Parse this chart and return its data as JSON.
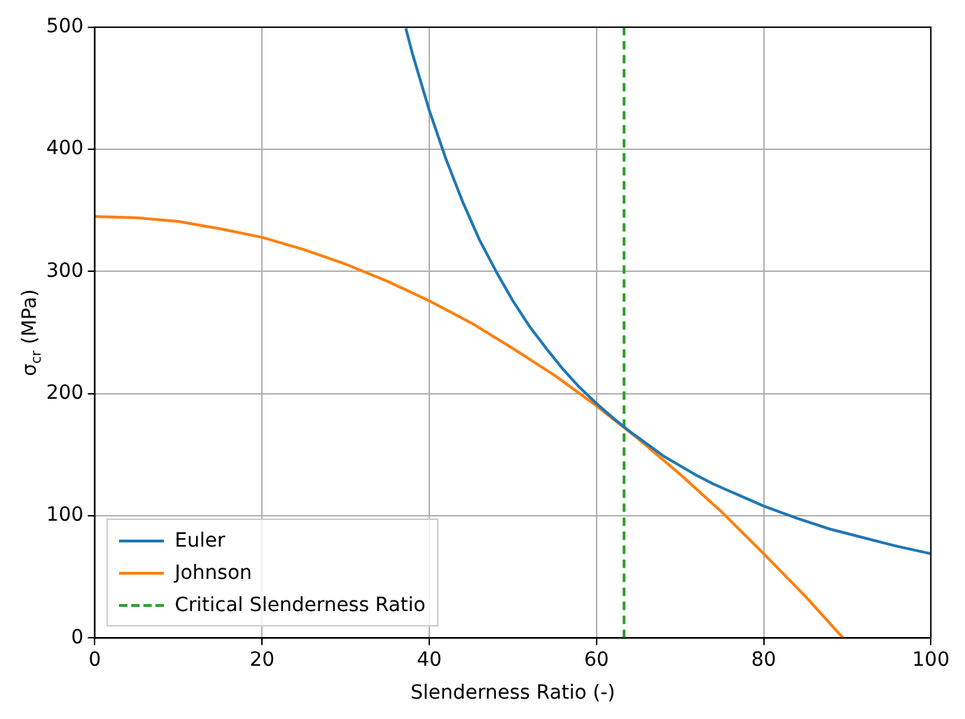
{
  "chart_data": {
    "type": "line",
    "xlabel": "Slenderness Ratio (-)",
    "ylabel": "σ$_{cr}$ (MPa)",
    "xlim": [
      0,
      100
    ],
    "ylim": [
      0,
      500
    ],
    "xticks": [
      0,
      20,
      40,
      60,
      80,
      100
    ],
    "yticks": [
      0,
      100,
      200,
      300,
      400,
      500
    ],
    "grid": true,
    "legend": "bottom left",
    "line_style": "solid",
    "marker": "none",
    "series": [
      {
        "name": "Euler",
        "color": "#1f77b4",
        "x": [
          37.2,
          38,
          40,
          42,
          44,
          46,
          48,
          50,
          52,
          54,
          56,
          58,
          60,
          62,
          64,
          66,
          68,
          70,
          72,
          74,
          76,
          78,
          80,
          84,
          88,
          92,
          96,
          100
        ],
        "values": [
          499,
          478,
          432,
          392,
          357,
          326,
          300,
          276,
          255,
          237,
          220,
          205,
          192,
          180,
          169,
          159,
          149,
          141,
          133,
          126,
          120,
          114,
          108,
          98,
          89,
          82,
          75,
          69
        ]
      },
      {
        "name": "Johnson",
        "color": "#ff7f0e",
        "x": [
          0,
          5,
          10,
          15,
          20,
          25,
          30,
          35,
          40,
          45,
          50,
          55,
          60,
          65,
          70,
          75,
          80,
          85,
          89.5
        ],
        "values": [
          345,
          344,
          341,
          335,
          328,
          318,
          306,
          292,
          276,
          258,
          237,
          215,
          190,
          163,
          134,
          103,
          69,
          34,
          0
        ]
      },
      {
        "name": "Critical Slenderness Ratio",
        "color": "#2ca02c",
        "line_style": "dashed",
        "x": [
          63.3,
          63.3
        ],
        "values": [
          0,
          500
        ]
      }
    ]
  }
}
